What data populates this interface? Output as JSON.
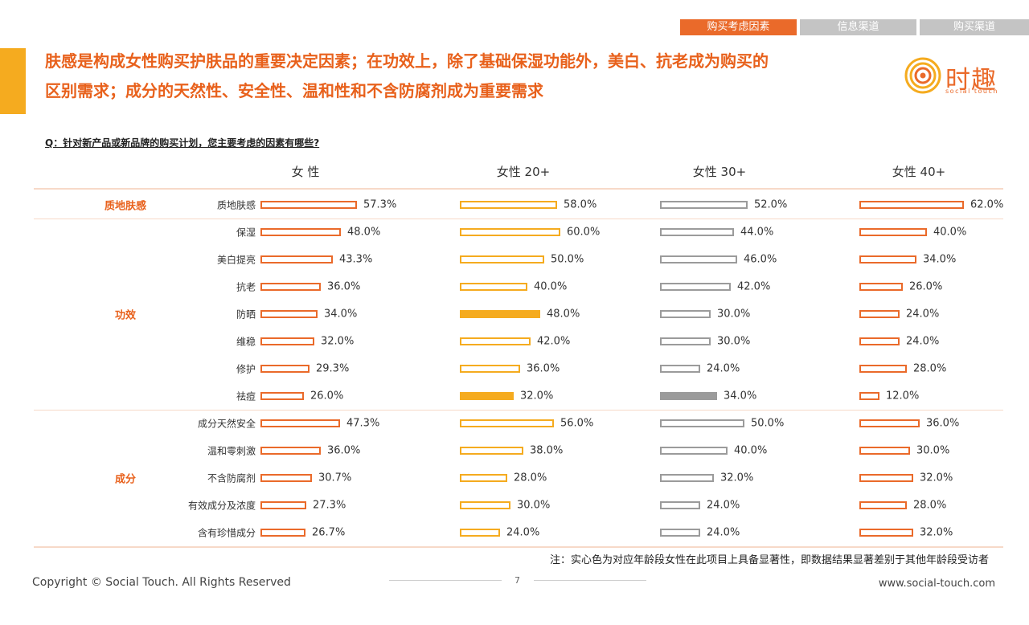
{
  "nav": {
    "tabs": [
      {
        "label": "购买考虑因素",
        "active": true
      },
      {
        "label": "信息渠道",
        "active": false
      },
      {
        "label": "购买渠道",
        "active": false
      }
    ]
  },
  "title_line1": "肤感是构成女性购买护肤品的重要决定因素；在功效上，除了基础保湿功能外，美白、抗老成为购买的",
  "title_line2": "区别需求；成分的天然性、安全性、温和性和不含防腐剂成为重要需求",
  "logo": {
    "name": "时趣",
    "sub": "social touch",
    "color": "#ea6a2a"
  },
  "question": "Q：针对新产品或新品牌的购买计划，您主要考虑的因素有哪些?",
  "colors": {
    "orange": "#ea6a2a",
    "yellow": "#f5ab1f",
    "gray": "#9b9b9b"
  },
  "chart_data": {
    "type": "bar",
    "columns": [
      {
        "name": "女 性",
        "color": "#ea6a2a"
      },
      {
        "name": "女性 20+",
        "color": "#f5ab1f"
      },
      {
        "name": "女性 30+",
        "color": "#9b9b9b"
      },
      {
        "name": "女性 40+",
        "color": "#ea6a2a"
      }
    ],
    "groups": [
      {
        "name": "质地肤感",
        "rows": [
          {
            "label": "质地肤感",
            "values": [
              57.3,
              58.0,
              52.0,
              62.0
            ],
            "sig": [
              false,
              false,
              false,
              false
            ]
          }
        ]
      },
      {
        "name": "功效",
        "rows": [
          {
            "label": "保湿",
            "values": [
              48.0,
              60.0,
              44.0,
              40.0
            ],
            "sig": [
              false,
              false,
              false,
              false
            ]
          },
          {
            "label": "美白提亮",
            "values": [
              43.3,
              50.0,
              46.0,
              34.0
            ],
            "sig": [
              false,
              false,
              false,
              false
            ]
          },
          {
            "label": "抗老",
            "values": [
              36.0,
              40.0,
              42.0,
              26.0
            ],
            "sig": [
              false,
              false,
              false,
              false
            ]
          },
          {
            "label": "防晒",
            "values": [
              34.0,
              48.0,
              30.0,
              24.0
            ],
            "sig": [
              false,
              true,
              false,
              false
            ]
          },
          {
            "label": "维稳",
            "values": [
              32.0,
              42.0,
              30.0,
              24.0
            ],
            "sig": [
              false,
              false,
              false,
              false
            ]
          },
          {
            "label": "修护",
            "values": [
              29.3,
              36.0,
              24.0,
              28.0
            ],
            "sig": [
              false,
              false,
              false,
              false
            ]
          },
          {
            "label": "祛痘",
            "values": [
              26.0,
              32.0,
              34.0,
              12.0
            ],
            "sig": [
              false,
              true,
              true,
              false
            ]
          }
        ]
      },
      {
        "name": "成分",
        "rows": [
          {
            "label": "成分天然安全",
            "values": [
              47.3,
              56.0,
              50.0,
              36.0
            ],
            "sig": [
              false,
              false,
              false,
              false
            ]
          },
          {
            "label": "温和零刺激",
            "values": [
              36.0,
              38.0,
              40.0,
              30.0
            ],
            "sig": [
              false,
              false,
              false,
              false
            ]
          },
          {
            "label": "不含防腐剂",
            "values": [
              30.7,
              28.0,
              32.0,
              32.0
            ],
            "sig": [
              false,
              false,
              false,
              false
            ]
          },
          {
            "label": "有效成分及浓度",
            "values": [
              27.3,
              30.0,
              24.0,
              28.0
            ],
            "sig": [
              false,
              false,
              false,
              false
            ]
          },
          {
            "label": "含有珍惜成分",
            "values": [
              26.7,
              24.0,
              24.0,
              32.0
            ],
            "sig": [
              false,
              false,
              false,
              false
            ]
          }
        ]
      }
    ]
  },
  "note": "注：实心色为对应年龄段女性在此项目上具备显著性，即数据结果显著差别于其他年龄段受访者",
  "footer": {
    "copyright": "Copyright © Social Touch. All Rights Reserved",
    "page": "7",
    "website": "www.social-touch.com"
  }
}
